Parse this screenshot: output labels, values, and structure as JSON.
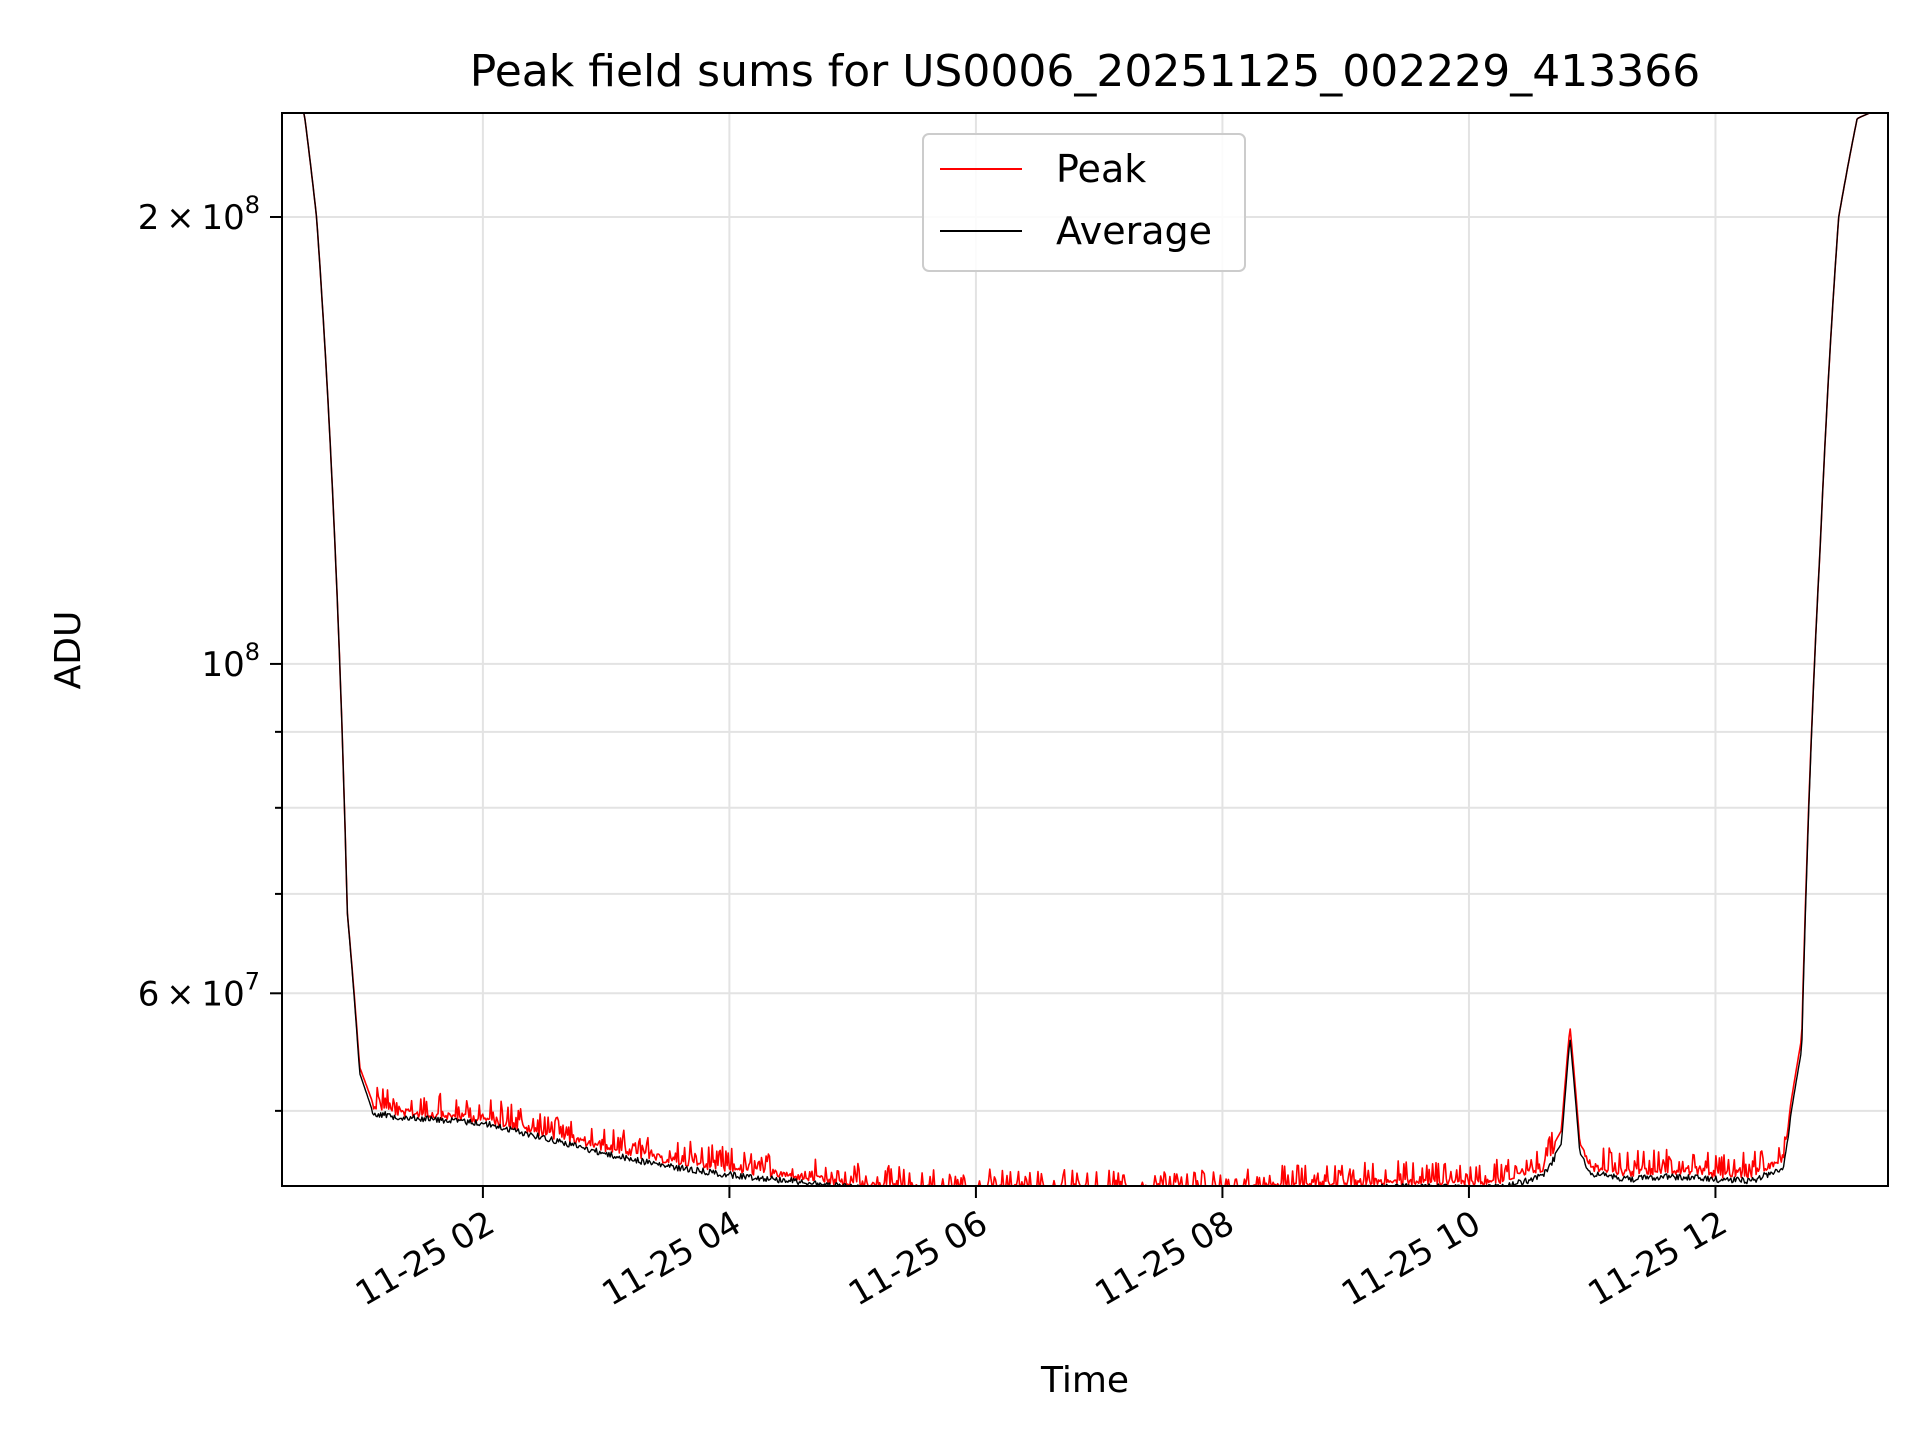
{
  "chart_data": {
    "type": "line",
    "title": "Peak field sums for US0006_20251125_002229_413366",
    "xlabel": "Time",
    "ylabel": "ADU",
    "yscale": "log",
    "ylim": [
      44500000,
      235000000
    ],
    "xlim_hours": [
      0.37,
      13.4
    ],
    "grid": true,
    "legend_position": "upper center",
    "x_ticks": [
      {
        "hour": 2,
        "label": "11-25 02"
      },
      {
        "hour": 4,
        "label": "11-25 04"
      },
      {
        "hour": 6,
        "label": "11-25 06"
      },
      {
        "hour": 8,
        "label": "11-25 08"
      },
      {
        "hour": 10,
        "label": "11-25 10"
      },
      {
        "hour": 12,
        "label": "11-25 12"
      }
    ],
    "y_major_ticks": [
      {
        "value": 200000000,
        "mant": "2",
        "exp": "8"
      },
      {
        "value": 100000000,
        "mant": "",
        "exp": "8"
      },
      {
        "value": 60000000,
        "mant": "6",
        "exp": "7"
      }
    ],
    "y_minor_ticks": [
      50000000,
      70000000,
      80000000,
      90000000
    ],
    "series": [
      {
        "name": "Peak",
        "color": "#ff0000",
        "x_hours": [
          0.37,
          0.55,
          0.65,
          0.8,
          0.9,
          1.0,
          1.1,
          1.3,
          1.6,
          2.0,
          2.5,
          3.0,
          3.5,
          4.0,
          4.5,
          5.0,
          5.5,
          6.0,
          6.5,
          7.0,
          7.3,
          7.6,
          8.0,
          8.5,
          9.0,
          9.5,
          10.0,
          10.3,
          10.6,
          10.75,
          10.82,
          10.9,
          11.0,
          11.3,
          11.6,
          12.0,
          12.3,
          12.55,
          12.7,
          12.85,
          13.0,
          13.15,
          13.25,
          13.4
        ],
        "values": [
          235000000,
          235000000,
          200000000,
          120000000,
          68000000,
          53500000,
          50800000,
          50200000,
          50000000,
          49700000,
          48600000,
          47500000,
          46600000,
          46000000,
          45500000,
          44900000,
          44600000,
          44500000,
          44500000,
          44400000,
          44300000,
          44400000,
          44500000,
          44700000,
          44900000,
          45100000,
          45000000,
          45200000,
          46000000,
          48500000,
          57000000,
          47500000,
          46100000,
          45700000,
          45900000,
          45600000,
          45600000,
          46800000,
          56000000,
          120000000,
          200000000,
          233000000,
          235000000,
          235000000
        ]
      },
      {
        "name": "Average",
        "color": "#000000",
        "x_hours": [
          0.37,
          0.55,
          0.65,
          0.8,
          0.9,
          1.0,
          1.1,
          1.3,
          1.6,
          2.0,
          2.5,
          3.0,
          3.5,
          4.0,
          4.5,
          5.0,
          5.5,
          6.0,
          6.5,
          7.0,
          7.3,
          7.6,
          8.0,
          8.5,
          9.0,
          9.5,
          10.0,
          10.3,
          10.6,
          10.75,
          10.82,
          10.9,
          11.0,
          11.3,
          11.6,
          12.0,
          12.3,
          12.55,
          12.7,
          12.85,
          13.0,
          13.15,
          13.25,
          13.4
        ],
        "values": [
          235000000,
          235000000,
          200000000,
          120000000,
          68000000,
          53000000,
          50100000,
          49800000,
          49600000,
          49300000,
          48200000,
          47000000,
          46100000,
          45500000,
          45100000,
          44600000,
          44300000,
          44200000,
          44100000,
          43900000,
          43800000,
          44000000,
          44100000,
          44300000,
          44500000,
          44700000,
          44600000,
          44700000,
          45400000,
          47500000,
          56000000,
          46800000,
          45600000,
          45200000,
          45400000,
          45200000,
          45100000,
          46000000,
          55000000,
          120000000,
          200000000,
          233000000,
          235000000,
          235000000
        ]
      }
    ]
  }
}
